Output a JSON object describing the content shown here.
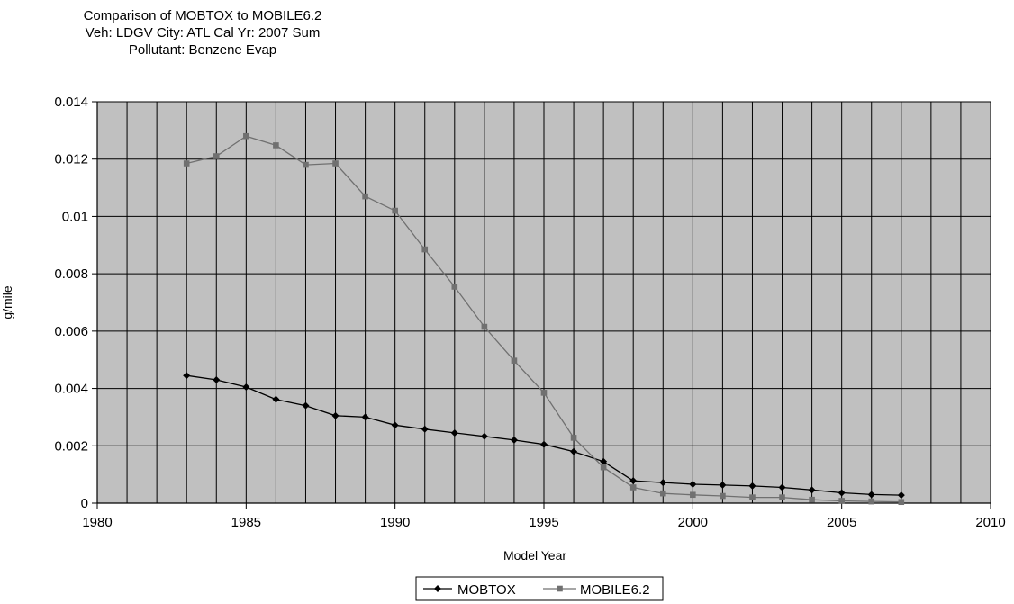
{
  "chart_data": {
    "type": "line",
    "title_lines": [
      "Comparison of MOBTOX to MOBILE6.2",
      "Veh: LDGV   City: ATL   Cal Yr: 2007 Sum",
      "Pollutant: Benzene Evap"
    ],
    "xlabel": "Model Year",
    "ylabel": "g/mile",
    "xlim": [
      1980,
      2010
    ],
    "ylim": [
      0,
      0.014
    ],
    "x_ticks": [
      1980,
      1985,
      1990,
      1995,
      2000,
      2005,
      2010
    ],
    "x_tick_labels": [
      "1980",
      "1985",
      "1990",
      "1995",
      "2000",
      "2005",
      "2010"
    ],
    "y_ticks": [
      0,
      0.002,
      0.004,
      0.006,
      0.008,
      0.01,
      0.012,
      0.014
    ],
    "y_tick_labels": [
      "0",
      "0.002",
      "0.004",
      "0.006",
      "0.008",
      "0.01",
      "0.012",
      "0.014"
    ],
    "grid": "vertical every year, horizontal at y ticks",
    "plot_background": "#c0c0c0",
    "legend_position": "bottom-center",
    "x": [
      1983,
      1984,
      1985,
      1986,
      1987,
      1988,
      1989,
      1990,
      1991,
      1992,
      1993,
      1994,
      1995,
      1996,
      1997,
      1998,
      1999,
      2000,
      2001,
      2002,
      2003,
      2004,
      2005,
      2006,
      2007
    ],
    "series": [
      {
        "name": "MOBTOX",
        "color": "#000000",
        "marker": "diamond",
        "values": [
          0.00445,
          0.0043,
          0.00405,
          0.00362,
          0.0034,
          0.00305,
          0.003,
          0.00272,
          0.00258,
          0.00245,
          0.00233,
          0.0022,
          0.00205,
          0.0018,
          0.00145,
          0.00078,
          0.00072,
          0.00066,
          0.00063,
          0.0006,
          0.00055,
          0.00046,
          0.00036,
          0.0003,
          0.00028
        ]
      },
      {
        "name": "MOBILE6.2",
        "color": "#707070",
        "marker": "square",
        "values": [
          0.01185,
          0.0121,
          0.0128,
          0.01248,
          0.0118,
          0.01185,
          0.0107,
          0.0102,
          0.00885,
          0.00755,
          0.00615,
          0.00497,
          0.00385,
          0.00228,
          0.00125,
          0.00055,
          0.00034,
          0.00029,
          0.00025,
          0.0002,
          0.0002,
          0.00012,
          8e-05,
          6e-05,
          4e-05
        ]
      }
    ]
  }
}
